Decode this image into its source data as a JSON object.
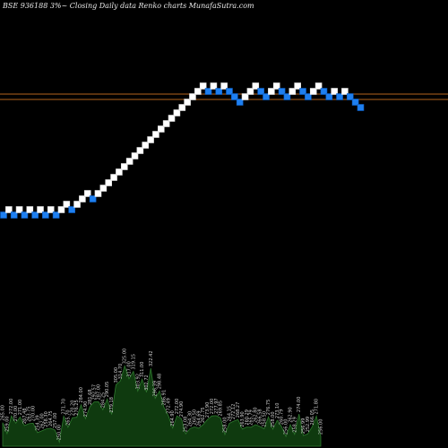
{
  "header": {
    "symbol": "BSE 936188",
    "pct": "3%",
    "rest": "~  Closing Daily data  Renko  charts MunafaSutra.com"
  },
  "colors": {
    "background": "#000000",
    "up_brick": "#ffffff",
    "down_brick": "#1e7ff0",
    "ref_line": "#b5651d",
    "volume_fill": "#0f3a0f",
    "volume_line": "#2f7a2f",
    "label": "#cfcfcf"
  },
  "chart_data": {
    "type": "renko",
    "title": "",
    "ylim": [
      230,
      330
    ],
    "reference_lines": [
      305,
      303
    ],
    "bricks": [
      {
        "value": 260,
        "dir": "down"
      },
      {
        "value": 262,
        "dir": "up"
      },
      {
        "value": 260,
        "dir": "down"
      },
      {
        "value": 262,
        "dir": "up"
      },
      {
        "value": 260,
        "dir": "down"
      },
      {
        "value": 262,
        "dir": "up"
      },
      {
        "value": 260,
        "dir": "down"
      },
      {
        "value": 262,
        "dir": "up"
      },
      {
        "value": 260,
        "dir": "down"
      },
      {
        "value": 262,
        "dir": "up"
      },
      {
        "value": 260,
        "dir": "down"
      },
      {
        "value": 262,
        "dir": "up"
      },
      {
        "value": 264,
        "dir": "up"
      },
      {
        "value": 262,
        "dir": "down"
      },
      {
        "value": 264,
        "dir": "up"
      },
      {
        "value": 266,
        "dir": "up"
      },
      {
        "value": 268,
        "dir": "up"
      },
      {
        "value": 266,
        "dir": "down"
      },
      {
        "value": 268,
        "dir": "up"
      },
      {
        "value": 270,
        "dir": "up"
      },
      {
        "value": 272,
        "dir": "up"
      },
      {
        "value": 274,
        "dir": "up"
      },
      {
        "value": 276,
        "dir": "up"
      },
      {
        "value": 278,
        "dir": "up"
      },
      {
        "value": 280,
        "dir": "up"
      },
      {
        "value": 282,
        "dir": "up"
      },
      {
        "value": 284,
        "dir": "up"
      },
      {
        "value": 286,
        "dir": "up"
      },
      {
        "value": 288,
        "dir": "up"
      },
      {
        "value": 290,
        "dir": "up"
      },
      {
        "value": 292,
        "dir": "up"
      },
      {
        "value": 294,
        "dir": "up"
      },
      {
        "value": 296,
        "dir": "up"
      },
      {
        "value": 298,
        "dir": "up"
      },
      {
        "value": 300,
        "dir": "up"
      },
      {
        "value": 302,
        "dir": "up"
      },
      {
        "value": 304,
        "dir": "up"
      },
      {
        "value": 306,
        "dir": "up"
      },
      {
        "value": 308,
        "dir": "up"
      },
      {
        "value": 306,
        "dir": "down"
      },
      {
        "value": 308,
        "dir": "up"
      },
      {
        "value": 306,
        "dir": "down"
      },
      {
        "value": 308,
        "dir": "up"
      },
      {
        "value": 306,
        "dir": "down"
      },
      {
        "value": 304,
        "dir": "down"
      },
      {
        "value": 302,
        "dir": "down"
      },
      {
        "value": 304,
        "dir": "up"
      },
      {
        "value": 306,
        "dir": "up"
      },
      {
        "value": 308,
        "dir": "up"
      },
      {
        "value": 306,
        "dir": "down"
      },
      {
        "value": 304,
        "dir": "down"
      },
      {
        "value": 306,
        "dir": "up"
      },
      {
        "value": 308,
        "dir": "up"
      },
      {
        "value": 306,
        "dir": "down"
      },
      {
        "value": 304,
        "dir": "down"
      },
      {
        "value": 306,
        "dir": "up"
      },
      {
        "value": 308,
        "dir": "up"
      },
      {
        "value": 306,
        "dir": "down"
      },
      {
        "value": 304,
        "dir": "down"
      },
      {
        "value": 306,
        "dir": "up"
      },
      {
        "value": 308,
        "dir": "up"
      },
      {
        "value": 306,
        "dir": "down"
      },
      {
        "value": 304,
        "dir": "down"
      },
      {
        "value": 306,
        "dir": "up"
      },
      {
        "value": 304,
        "dir": "down"
      },
      {
        "value": 306,
        "dir": "up"
      },
      {
        "value": 304,
        "dir": "down"
      },
      {
        "value": 302,
        "dir": "down"
      },
      {
        "value": 300,
        "dir": "down"
      }
    ],
    "volume_labels": [
      "265.00",
      "259.00",
      "272.00",
      "270.00",
      "271.00",
      "267.48",
      "263.75",
      "270.00",
      "254.39",
      "262.00",
      "258.30",
      "264.75",
      "257.00",
      "250.00",
      "271.70",
      "265.70",
      "270.20",
      "276.25",
      "284.00",
      "274.90",
      "281.68",
      "292.57",
      "287.00",
      "284.25",
      "290.05",
      "279.18",
      "305.00",
      "314.70",
      "325.00",
      "317.00",
      "319.15",
      "303.92",
      "311.00",
      "302.72",
      "322.42",
      "296.39",
      "298.48",
      "286.91",
      "272.49",
      "264.90",
      "272.00",
      "274.90",
      "253.08",
      "264.30",
      "260.50",
      "264.69",
      "262.75",
      "273.90",
      "272.00",
      "277.97",
      "269.85",
      "258.00",
      "264.15",
      "272.12",
      "268.27",
      "263.90",
      "260.29",
      "265.79",
      "262.80",
      "266.58",
      "258.50",
      "276.75",
      "258.00",
      "273.10",
      "260.79",
      "256.00",
      "262.90",
      "258.29",
      "274.00",
      "256.99",
      "252.99",
      "266.05",
      "271.80",
      "256.00"
    ]
  }
}
